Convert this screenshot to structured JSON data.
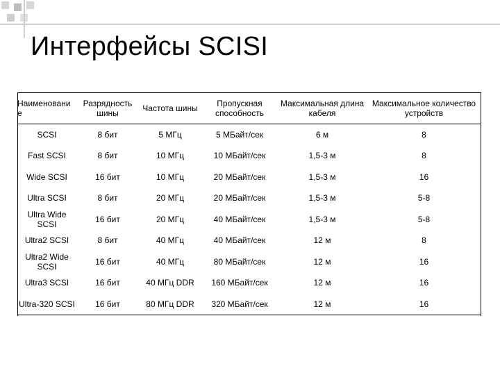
{
  "slide": {
    "title": "Интерфейсы SCISI"
  },
  "table": {
    "headers": [
      "Наименовани е",
      "Разрядность шины",
      "Частота шины",
      "Пропускная способность",
      "Максимальная длина кабеля",
      "Максимальное количество устройств"
    ],
    "rows": [
      [
        "SCSI",
        "8 бит",
        "5 МГц",
        "5 МБайт/сек",
        "6 м",
        "8"
      ],
      [
        "Fast SCSI",
        "8 бит",
        "10 МГц",
        "10 МБайт/сек",
        "1,5-3 м",
        "8"
      ],
      [
        "Wide SCSI",
        "16 бит",
        "10 МГц",
        "20 МБайт/сек",
        "1,5-3 м",
        "16"
      ],
      [
        "Ultra SCSI",
        "8 бит",
        "20 МГц",
        "20 МБайт/сек",
        "1,5-3 м",
        "5-8"
      ],
      [
        "Ultra Wide SCSI",
        "16 бит",
        "20 МГц",
        "40 МБайт/сек",
        "1,5-3 м",
        "5-8"
      ],
      [
        "Ultra2 SCSI",
        "8 бит",
        "40 МГц",
        "40 МБайт/сек",
        "12 м",
        "8"
      ],
      [
        "Ultra2 Wide SCSI",
        "16 бит",
        "40 МГц",
        "80 МБайт/сек",
        "12 м",
        "16"
      ],
      [
        "Ultra3 SCSI",
        "16 бит",
        "40 МГц DDR",
        "160 МБайт/сек",
        "12 м",
        "16"
      ],
      [
        "Ultra-320 SCSI",
        "16 бит",
        "80 МГц DDR",
        "320 МБайт/сек",
        "12 м",
        "16"
      ]
    ]
  },
  "colors": {
    "decoration": "#cfcfcf",
    "text": "#000000"
  }
}
